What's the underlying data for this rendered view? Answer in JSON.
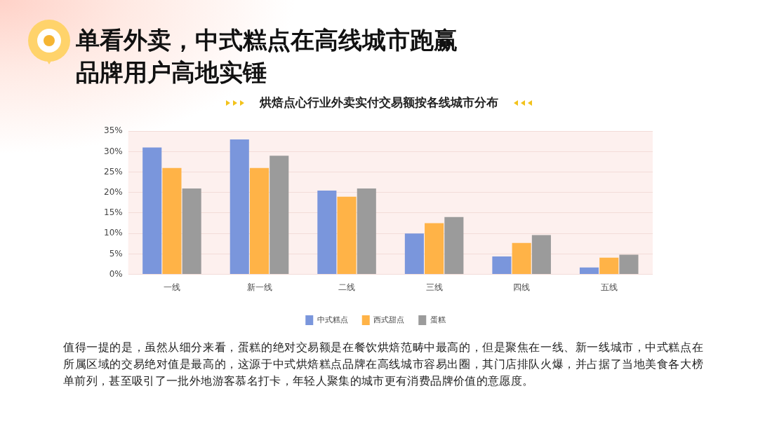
{
  "chart_data": {
    "type": "bar",
    "title": "单看外卖，中式糕点在高线城市跑赢品牌用户高地实锤",
    "subtitle": "烘焙点心行业外卖实付交易额按各线城市分布",
    "categories": [
      "一线",
      "新一线",
      "二线",
      "三线",
      "四线",
      "五线"
    ],
    "series": [
      {
        "name": "中式糕点",
        "color": "#7a96dc",
        "values": [
          31,
          33,
          20.5,
          10,
          4.4,
          1.7
        ]
      },
      {
        "name": "西式甜点",
        "color": "#ffb347",
        "values": [
          26,
          26,
          19,
          12.5,
          7.7,
          4.1
        ]
      },
      {
        "name": "蛋糕",
        "color": "#9b9b9b",
        "values": [
          21,
          29,
          21,
          14,
          9.6,
          4.8
        ]
      }
    ],
    "ylim": [
      0,
      35
    ],
    "yticks": [
      {
        "value": 0,
        "label": "0%"
      },
      {
        "value": 5,
        "label": "5%"
      },
      {
        "value": 10,
        "label": "10%"
      },
      {
        "value": 15,
        "label": "15%"
      },
      {
        "value": 20,
        "label": "20%"
      },
      {
        "value": 25,
        "label": "25%"
      },
      {
        "value": 30,
        "label": "30%"
      },
      {
        "value": 35,
        "label": "35%"
      }
    ],
    "grid": "y",
    "legend": "bottom",
    "annotations": [
      "值得一提的是，虽然从细分来看，蛋糕的绝对交易额是在餐饮烘焙范畴中最高的，但是聚焦在一线、新一线城市，中式糕点在所属区域的交易绝对值是最高的，这源于中式烘焙糕点品牌在高线城市容易出圈，其门店排队火爆，并占据了当地美食各大榜单前列，甚至吸引了一批外地游客慕名打卡，年轻人聚集的城市更有消费品牌价值的意愿度。"
    ]
  }
}
